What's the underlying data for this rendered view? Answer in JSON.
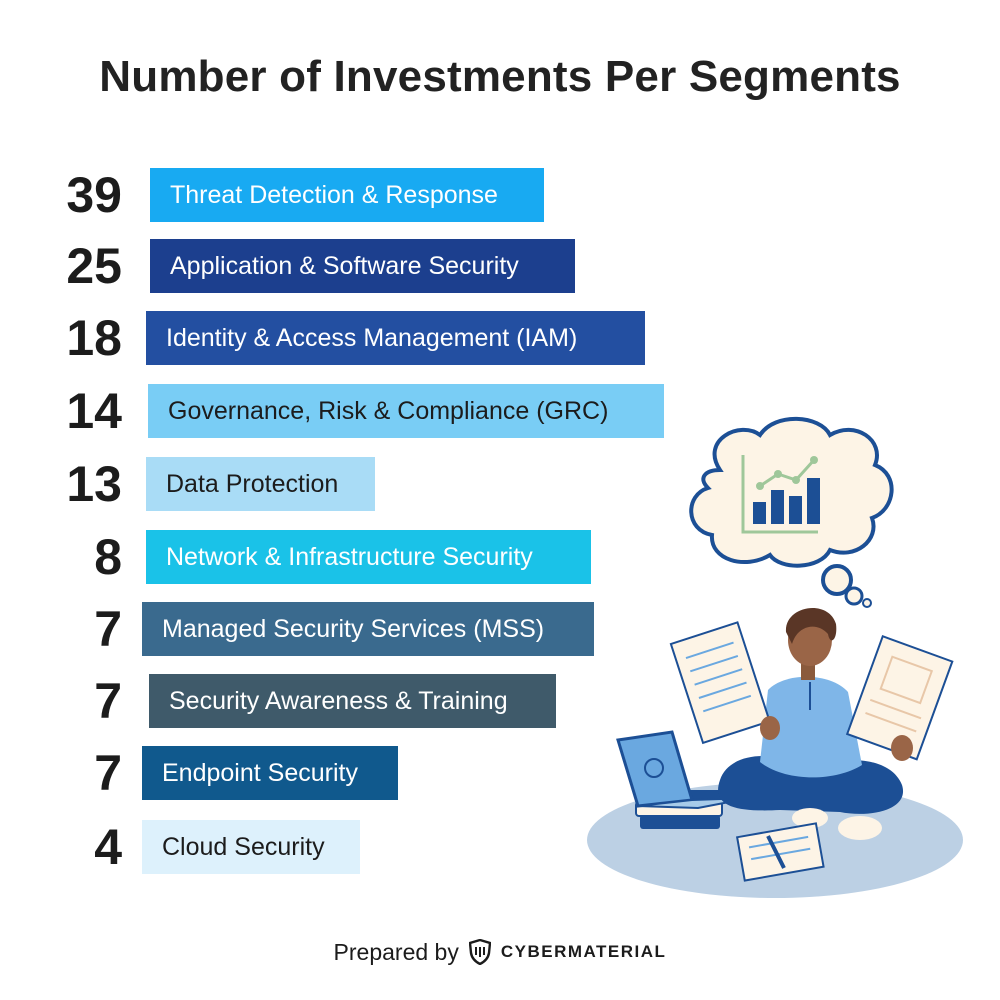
{
  "chart_data": {
    "type": "bar",
    "title": "Number of Investments Per Segments",
    "categories": [
      "Threat Detection & Response",
      "Application & Software Security",
      "Identity & Access Management (IAM)",
      "Governance, Risk & Compliance (GRC)",
      "Data Protection",
      "Network & Infrastructure Security",
      "Managed Security Services (MSS)",
      "Security Awareness & Training",
      "Endpoint Security",
      "Cloud Security"
    ],
    "values": [
      39,
      25,
      18,
      14,
      13,
      8,
      7,
      7,
      7,
      4
    ],
    "colors": [
      "#18aaf2",
      "#1c3f8e",
      "#234fa1",
      "#79cdf5",
      "#a9dcf6",
      "#1ac2e8",
      "#3a6a8e",
      "#3f5a6a",
      "#10598d",
      "#ddf1fc"
    ],
    "label_colors": [
      "#ffffff",
      "#ffffff",
      "#ffffff",
      "#1c1c1c",
      "#1c1c1c",
      "#ffffff",
      "#ffffff",
      "#ffffff",
      "#ffffff",
      "#1c1c1c"
    ]
  },
  "footer": {
    "prepared_by": "Prepared by",
    "brand": "CYBERMATERIAL"
  },
  "icons": [
    "shield-logo-icon",
    "person-reading-illustration",
    "thought-bubble-chart-icon"
  ]
}
